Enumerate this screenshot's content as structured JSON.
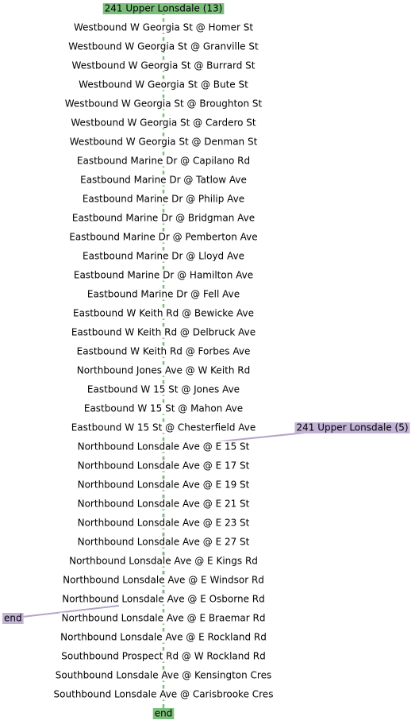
{
  "routes": [
    {
      "name": "241 Upper Lonsdale (13)",
      "end": "end"
    },
    {
      "name": "241 Upper Lonsdale (5)",
      "end": "end"
    }
  ],
  "stops": [
    "Westbound W Georgia St @ Homer St",
    "Westbound W Georgia St @ Granville St",
    "Westbound W Georgia St @ Burrard St",
    "Westbound W Georgia St @ Bute St",
    "Westbound W Georgia St @ Broughton St",
    "Westbound W Georgia St @ Cardero St",
    "Westbound W Georgia St @ Denman St",
    "Eastbound Marine Dr @ Capilano Rd",
    "Eastbound Marine Dr @ Tatlow Ave",
    "Eastbound Marine Dr @ Philip Ave",
    "Eastbound Marine Dr @ Bridgman Ave",
    "Eastbound Marine Dr @ Pemberton Ave",
    "Eastbound Marine Dr @ Lloyd Ave",
    "Eastbound Marine Dr @ Hamilton Ave",
    "Eastbound Marine Dr @ Fell Ave",
    "Eastbound W Keith Rd @ Bewicke Ave",
    "Eastbound W Keith Rd @ Delbruck Ave",
    "Eastbound W Keith Rd @ Forbes Ave",
    "Northbound Jones Ave @ W Keith Rd",
    "Eastbound W 15 St @ Jones Ave",
    "Eastbound W 15 St @ Mahon Ave",
    "Eastbound W 15 St @ Chesterfield Ave",
    "Northbound Lonsdale Ave @ E 15 St",
    "Northbound Lonsdale Ave @ E 17 St",
    "Northbound Lonsdale Ave @ E 19 St",
    "Northbound Lonsdale Ave @ E 21 St",
    "Northbound Lonsdale Ave @ E 23 St",
    "Northbound Lonsdale Ave @ E 27 St",
    "Northbound Lonsdale Ave @ E Kings Rd",
    "Northbound Lonsdale Ave @ E Windsor Rd",
    "Northbound Lonsdale Ave @ E Osborne Rd",
    "Northbound Lonsdale Ave @ E Braemar Rd",
    "Northbound Lonsdale Ave @ E Rockland Rd",
    "Southbound Prospect Rd @ W Rockland Rd",
    "Southbound Lonsdale Ave @ Kensington Cres",
    "Southbound Lonsdale Ave @ Carisbrooke Cres"
  ]
}
